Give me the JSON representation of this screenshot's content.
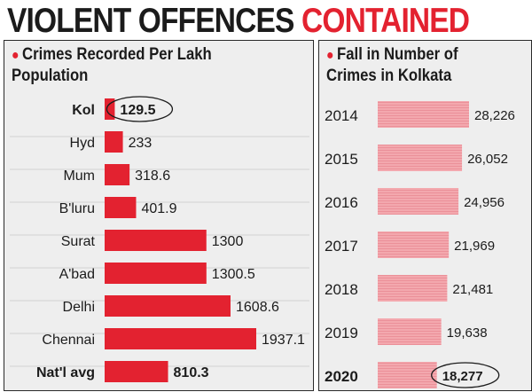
{
  "headline": {
    "part1": "VIOLENT OFFENCES",
    "part2": "CONTAINED"
  },
  "colors": {
    "accent": "#e32230",
    "bar_highlight": "#e32230",
    "bar_pink": "#f3a8ae",
    "panel_bg": "#eeeeee",
    "text": "#1b1b1b"
  },
  "chart_data": [
    {
      "type": "bar",
      "orientation": "horizontal",
      "title_line1": "Crimes Recorded Per Lakh",
      "title_line2": "Population",
      "categories": [
        "Kol",
        "Hyd",
        "Mum",
        "B'luru",
        "Surat",
        "A'bad",
        "Delhi",
        "Chennai",
        "Nat'l avg"
      ],
      "values": [
        129.5,
        233,
        318.6,
        401.9,
        1300,
        1300.5,
        1608.6,
        1937.1,
        810.3
      ],
      "labels": [
        "129.5",
        "233",
        "318.6",
        "401.9",
        "1300",
        "1300.5",
        "1608.6",
        "1937.1",
        "810.3"
      ],
      "bold_categories": [
        "Kol",
        "Nat'l avg"
      ],
      "circled": "Kol",
      "grid": false
    },
    {
      "type": "bar",
      "orientation": "horizontal",
      "title_line1": "Fall in Number of",
      "title_line2": "Crimes in Kolkata",
      "categories": [
        "2014",
        "2015",
        "2016",
        "2017",
        "2018",
        "2019",
        "2020"
      ],
      "values": [
        28226,
        26052,
        24956,
        21969,
        21481,
        19638,
        18277
      ],
      "labels": [
        "28,226",
        "26,052",
        "24,956",
        "21,969",
        "21,481",
        "19,638",
        "18,277"
      ],
      "bold_categories": [
        "2020"
      ],
      "circled": "2020",
      "grid": false
    }
  ]
}
